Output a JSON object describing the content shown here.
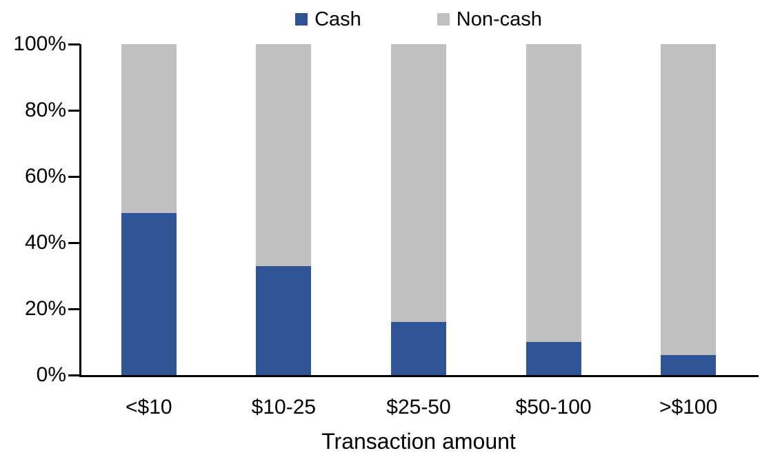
{
  "chart_data": {
    "type": "bar",
    "variant": "stacked-100-percent",
    "categories": [
      "<$10",
      "$10-25",
      "$25-50",
      "$50-100",
      ">$100"
    ],
    "series": [
      {
        "name": "Cash",
        "color": "#2F5496",
        "values": [
          49,
          33,
          16,
          10,
          6
        ]
      },
      {
        "name": "Non-cash",
        "color": "#BFBFBF",
        "values": [
          51,
          67,
          84,
          90,
          94
        ]
      }
    ],
    "xlabel": "Transaction amount",
    "ylabel": "",
    "ylim": [
      0,
      100
    ],
    "ytick_values": [
      0,
      20,
      40,
      60,
      80,
      100
    ],
    "ytick_labels": [
      "0%",
      "20%",
      "40%",
      "60%",
      "80%",
      "100%"
    ],
    "legend_position": "top-center",
    "legend_labels": [
      "Cash",
      "Non-cash"
    ],
    "grid": false,
    "axis_color": "#000000",
    "background_color": "#FFFFFF"
  }
}
